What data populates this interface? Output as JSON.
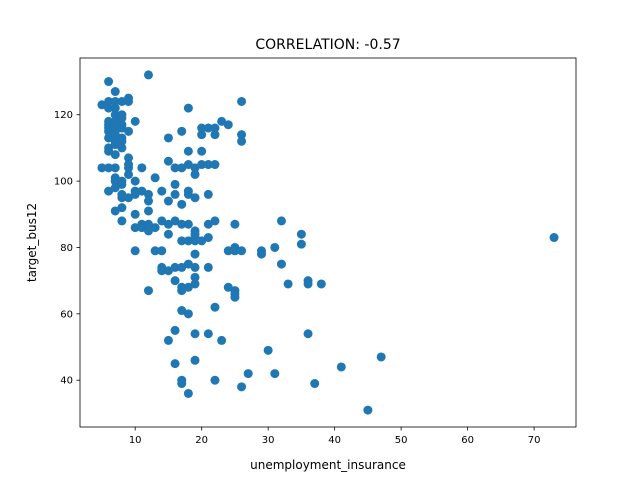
{
  "chart_data": {
    "type": "scatter",
    "title": "CORRELATION: -0.57",
    "xlabel": "unemployment_insurance",
    "ylabel": "target_bus12",
    "xlim": [
      1.7,
      76.3
    ],
    "ylim": [
      25.9,
      137.1
    ],
    "xticks": [
      10,
      20,
      30,
      40,
      50,
      60,
      70
    ],
    "yticks": [
      40,
      60,
      80,
      100,
      120
    ],
    "grid": false,
    "marker_color": "#1f77b4",
    "points": [
      [
        6,
        130
      ],
      [
        12,
        132
      ],
      [
        5,
        123
      ],
      [
        6,
        124
      ],
      [
        6,
        122
      ],
      [
        7,
        127
      ],
      [
        7,
        124
      ],
      [
        7,
        122
      ],
      [
        8,
        124
      ],
      [
        9,
        125
      ],
      [
        9,
        124
      ],
      [
        6,
        118
      ],
      [
        6,
        117
      ],
      [
        6,
        116
      ],
      [
        6,
        115
      ],
      [
        7,
        120
      ],
      [
        7,
        118
      ],
      [
        7,
        117
      ],
      [
        7,
        116
      ],
      [
        7,
        115
      ],
      [
        7,
        114
      ],
      [
        8,
        120
      ],
      [
        8,
        119
      ],
      [
        8,
        117
      ],
      [
        8,
        116
      ],
      [
        8,
        113
      ],
      [
        10,
        118
      ],
      [
        9,
        115
      ],
      [
        6,
        113
      ],
      [
        6,
        110
      ],
      [
        6,
        109
      ],
      [
        7,
        112
      ],
      [
        7,
        111
      ],
      [
        8,
        112
      ],
      [
        8,
        110
      ],
      [
        7,
        108
      ],
      [
        6,
        104
      ],
      [
        5,
        104
      ],
      [
        7,
        104
      ],
      [
        6,
        97
      ],
      [
        7,
        101
      ],
      [
        7,
        100
      ],
      [
        7,
        98
      ],
      [
        8,
        100
      ],
      [
        8,
        96
      ],
      [
        8,
        95
      ],
      [
        9,
        107
      ],
      [
        9,
        105
      ],
      [
        9,
        104
      ],
      [
        9,
        102
      ],
      [
        8,
        99
      ],
      [
        10,
        100
      ],
      [
        10,
        97
      ],
      [
        10,
        96
      ],
      [
        9,
        95
      ],
      [
        10,
        90
      ],
      [
        8,
        92
      ],
      [
        7,
        91
      ],
      [
        8,
        88
      ],
      [
        11,
        104
      ],
      [
        11,
        97
      ],
      [
        12,
        96
      ],
      [
        12,
        94
      ],
      [
        12,
        91
      ],
      [
        11,
        87
      ],
      [
        10,
        86
      ],
      [
        11,
        86
      ],
      [
        12,
        87
      ],
      [
        12,
        85
      ],
      [
        13,
        101
      ],
      [
        13,
        86
      ],
      [
        12,
        67
      ],
      [
        10,
        79
      ],
      [
        13,
        79
      ],
      [
        14,
        79
      ],
      [
        14,
        74
      ],
      [
        14,
        73
      ],
      [
        14,
        88
      ],
      [
        14,
        97
      ],
      [
        15,
        113
      ],
      [
        15,
        106
      ],
      [
        15,
        94
      ],
      [
        15,
        87
      ],
      [
        15,
        84
      ],
      [
        15,
        73
      ],
      [
        16,
        104
      ],
      [
        16,
        99
      ],
      [
        16,
        96
      ],
      [
        16,
        88
      ],
      [
        16,
        74
      ],
      [
        16,
        70
      ],
      [
        16,
        55
      ],
      [
        16,
        45
      ],
      [
        15,
        52
      ],
      [
        17,
        115
      ],
      [
        17,
        104
      ],
      [
        17,
        93
      ],
      [
        17,
        87
      ],
      [
        17,
        82
      ],
      [
        17,
        74
      ],
      [
        17,
        68
      ],
      [
        17,
        67
      ],
      [
        17,
        61
      ],
      [
        17,
        40
      ],
      [
        17,
        39
      ],
      [
        18,
        122
      ],
      [
        18,
        109
      ],
      [
        18,
        105
      ],
      [
        18,
        97
      ],
      [
        18,
        96
      ],
      [
        18,
        87
      ],
      [
        18,
        82
      ],
      [
        18,
        75
      ],
      [
        18,
        68
      ],
      [
        18,
        60
      ],
      [
        18,
        36
      ],
      [
        19,
        104
      ],
      [
        19,
        102
      ],
      [
        19,
        95
      ],
      [
        19,
        85
      ],
      [
        19,
        84
      ],
      [
        19,
        83
      ],
      [
        19,
        82
      ],
      [
        19,
        78
      ],
      [
        19,
        74
      ],
      [
        19,
        71
      ],
      [
        19,
        69
      ],
      [
        19,
        54
      ],
      [
        19,
        46
      ],
      [
        20,
        116
      ],
      [
        20,
        114
      ],
      [
        20,
        109
      ],
      [
        20,
        105
      ],
      [
        20,
        82
      ],
      [
        21,
        116
      ],
      [
        21,
        105
      ],
      [
        21,
        96
      ],
      [
        21,
        87
      ],
      [
        21,
        83
      ],
      [
        21,
        74
      ],
      [
        21,
        54
      ],
      [
        22,
        116
      ],
      [
        22,
        114
      ],
      [
        22,
        105
      ],
      [
        22,
        88
      ],
      [
        22,
        62
      ],
      [
        22,
        40
      ],
      [
        23,
        118
      ],
      [
        23,
        52
      ],
      [
        24,
        117
      ],
      [
        24,
        79
      ],
      [
        24,
        68
      ],
      [
        25,
        87
      ],
      [
        25,
        80
      ],
      [
        25,
        79
      ],
      [
        25,
        67
      ],
      [
        25,
        66
      ],
      [
        25,
        65
      ],
      [
        26,
        124
      ],
      [
        26,
        114
      ],
      [
        26,
        112
      ],
      [
        26,
        79
      ],
      [
        26,
        38
      ],
      [
        27,
        42
      ],
      [
        29,
        79
      ],
      [
        29,
        78
      ],
      [
        30,
        49
      ],
      [
        31,
        80
      ],
      [
        31,
        42
      ],
      [
        32,
        88
      ],
      [
        32,
        75
      ],
      [
        33,
        69
      ],
      [
        35,
        84
      ],
      [
        35,
        81
      ],
      [
        36,
        70
      ],
      [
        36,
        69
      ],
      [
        36,
        54
      ],
      [
        37,
        39
      ],
      [
        38,
        69
      ],
      [
        41,
        44
      ],
      [
        45,
        31
      ],
      [
        47,
        47
      ],
      [
        73,
        83
      ]
    ]
  }
}
